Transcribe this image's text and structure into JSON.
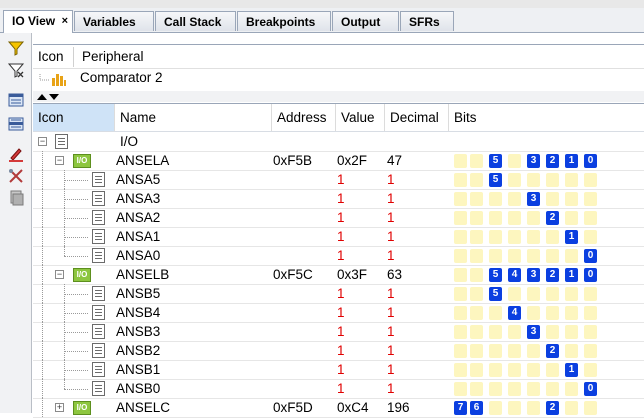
{
  "tabs": [
    {
      "label": "IO View",
      "active": true,
      "close": "×"
    },
    {
      "label": "Variables"
    },
    {
      "label": "Call Stack"
    },
    {
      "label": "Breakpoints"
    },
    {
      "label": "Output"
    },
    {
      "label": "SFRs"
    }
  ],
  "toolbar_icons": [
    "filter-icon",
    "filter-clear-icon",
    "layout-1-icon",
    "layout-2-icon",
    "edit-icon",
    "tools-icon",
    "copy-icon"
  ],
  "peripheral_panel": {
    "headers": [
      "Icon",
      "Peripheral"
    ],
    "row": {
      "icon": "bar-chart-icon",
      "label": "Comparator 2"
    }
  },
  "grid": {
    "headers": [
      "Icon",
      "Name",
      "Address",
      "Value",
      "Decimal",
      "Bits"
    ],
    "rows": [
      {
        "kind": "root",
        "name": "I/O",
        "address": "",
        "value": "",
        "decimal": "",
        "bits": []
      },
      {
        "kind": "reg",
        "name": "ANSELA",
        "address": "0xF5B",
        "value": "0x2F",
        "decimal": "47",
        "bits": [
          0,
          0,
          1,
          0,
          1,
          1,
          1,
          1
        ]
      },
      {
        "kind": "bit",
        "name": "ANSA5",
        "address": "",
        "value": "1",
        "decimal": "1",
        "bits": [
          0,
          0,
          1,
          0,
          0,
          0,
          0,
          0
        ]
      },
      {
        "kind": "bit",
        "name": "ANSA3",
        "address": "",
        "value": "1",
        "decimal": "1",
        "bits": [
          0,
          0,
          0,
          0,
          1,
          0,
          0,
          0
        ]
      },
      {
        "kind": "bit",
        "name": "ANSA2",
        "address": "",
        "value": "1",
        "decimal": "1",
        "bits": [
          0,
          0,
          0,
          0,
          0,
          1,
          0,
          0
        ]
      },
      {
        "kind": "bit",
        "name": "ANSA1",
        "address": "",
        "value": "1",
        "decimal": "1",
        "bits": [
          0,
          0,
          0,
          0,
          0,
          0,
          1,
          0
        ]
      },
      {
        "kind": "bit",
        "name": "ANSA0",
        "address": "",
        "value": "1",
        "decimal": "1",
        "bits": [
          0,
          0,
          0,
          0,
          0,
          0,
          0,
          1
        ]
      },
      {
        "kind": "reg",
        "name": "ANSELB",
        "address": "0xF5C",
        "value": "0x3F",
        "decimal": "63",
        "bits": [
          0,
          0,
          1,
          1,
          1,
          1,
          1,
          1
        ]
      },
      {
        "kind": "bit",
        "name": "ANSB5",
        "address": "",
        "value": "1",
        "decimal": "1",
        "bits": [
          0,
          0,
          1,
          0,
          0,
          0,
          0,
          0
        ]
      },
      {
        "kind": "bit",
        "name": "ANSB4",
        "address": "",
        "value": "1",
        "decimal": "1",
        "bits": [
          0,
          0,
          0,
          1,
          0,
          0,
          0,
          0
        ]
      },
      {
        "kind": "bit",
        "name": "ANSB3",
        "address": "",
        "value": "1",
        "decimal": "1",
        "bits": [
          0,
          0,
          0,
          0,
          1,
          0,
          0,
          0
        ]
      },
      {
        "kind": "bit",
        "name": "ANSB2",
        "address": "",
        "value": "1",
        "decimal": "1",
        "bits": [
          0,
          0,
          0,
          0,
          0,
          1,
          0,
          0
        ]
      },
      {
        "kind": "bit",
        "name": "ANSB1",
        "address": "",
        "value": "1",
        "decimal": "1",
        "bits": [
          0,
          0,
          0,
          0,
          0,
          0,
          1,
          0
        ]
      },
      {
        "kind": "bit",
        "name": "ANSB0",
        "address": "",
        "value": "1",
        "decimal": "1",
        "bits": [
          0,
          0,
          0,
          0,
          0,
          0,
          0,
          1
        ]
      },
      {
        "kind": "reg",
        "name": "ANSELC",
        "address": "0xF5D",
        "value": "0xC4",
        "decimal": "196",
        "bits": [
          1,
          1,
          0,
          0,
          0,
          1,
          0,
          0
        ]
      }
    ]
  },
  "reg_icon_label": "I/O",
  "colors": {
    "bit_on": "#0b3fe0",
    "bit_off": "#fdf6bf",
    "value_red": "#e00000",
    "reg_icon": "#8dc63f"
  }
}
